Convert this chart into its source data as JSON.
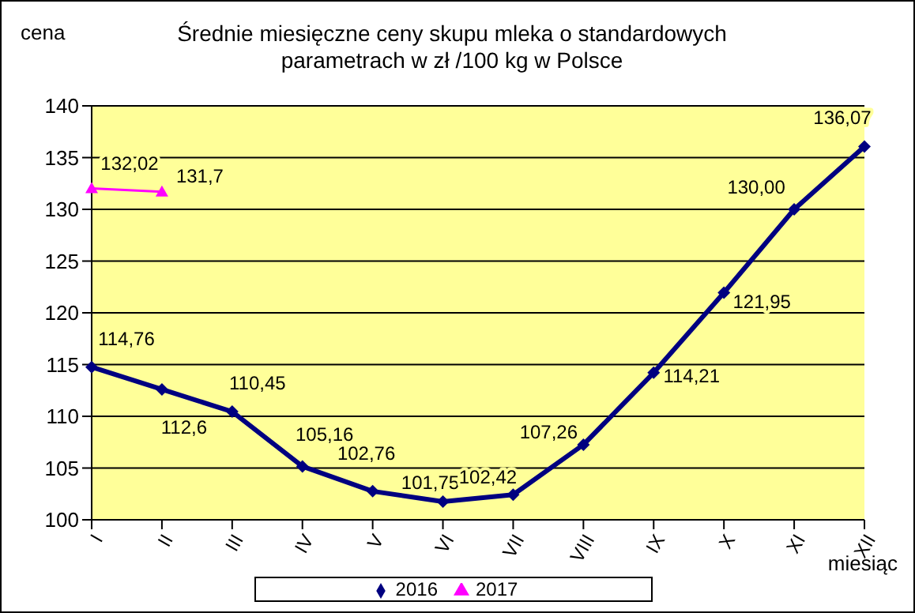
{
  "chart_data": {
    "type": "line",
    "title": "Średnie miesięczne ceny skupu mleka o standardowych parametrach w zł /100 kg w Polsce",
    "xlabel": "miesiąc",
    "ylabel": "cena",
    "categories": [
      "I",
      "II",
      "III",
      "IV",
      "V",
      "VI",
      "VII",
      "VIII",
      "IX",
      "X",
      "XI",
      "XII"
    ],
    "series": [
      {
        "name": "2016",
        "color": "#000080",
        "marker": "diamond",
        "values": [
          114.76,
          112.6,
          110.45,
          105.16,
          102.76,
          101.75,
          102.42,
          107.26,
          114.21,
          121.95,
          130.0,
          136.07
        ],
        "value_labels": [
          "114,76",
          "112,6",
          "110,45",
          "105,16",
          "102,76",
          "101,75",
          "102,42",
          "107,26",
          "114,21",
          "121,95",
          "130,00",
          "136,07"
        ]
      },
      {
        "name": "2017",
        "color": "#ff00ff",
        "marker": "triangle",
        "values": [
          132.02,
          131.7,
          null,
          null,
          null,
          null,
          null,
          null,
          null,
          null,
          null,
          null
        ],
        "value_labels": [
          "132,02",
          "131,7",
          null,
          null,
          null,
          null,
          null,
          null,
          null,
          null,
          null,
          null
        ]
      }
    ],
    "ylim": [
      100,
      140
    ],
    "yticks": [
      100,
      105,
      110,
      115,
      120,
      125,
      130,
      135,
      140
    ],
    "grid": "y",
    "legend": "bottom"
  }
}
